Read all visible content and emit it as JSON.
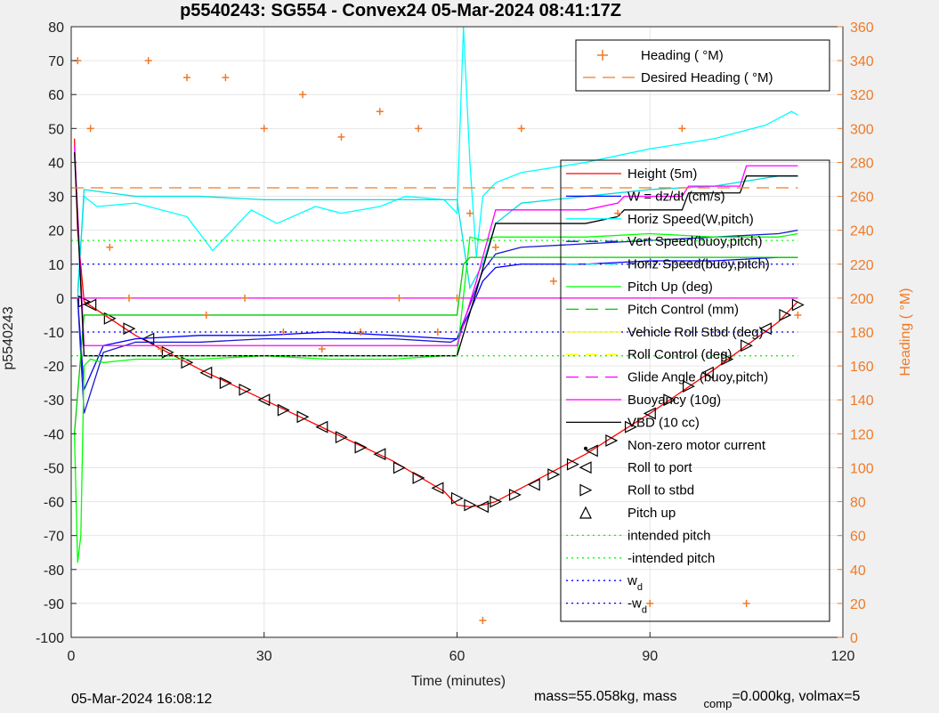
{
  "chart_data": {
    "type": "line",
    "title": "p5540243: SG554 - Convex24 05-Mar-2024 08:41:17Z",
    "xlabel": "Time (minutes)",
    "ylabel": "p5540243",
    "y2label": "Heading (  °M)",
    "xlim": [
      0,
      120
    ],
    "ylim": [
      -100,
      80
    ],
    "y2lim": [
      0,
      360
    ],
    "xticks": [
      0,
      30,
      60,
      90,
      120
    ],
    "yticks": [
      -100,
      -90,
      -80,
      -70,
      -60,
      -50,
      -40,
      -30,
      -20,
      -10,
      0,
      10,
      20,
      30,
      40,
      50,
      60,
      70,
      80
    ],
    "y2ticks": [
      0,
      20,
      40,
      60,
      80,
      100,
      120,
      140,
      160,
      180,
      200,
      220,
      240,
      260,
      280,
      300,
      320,
      340,
      360
    ],
    "grid": true,
    "legend_top": [
      {
        "label": "Heading (  °M)",
        "color": "#f07a28",
        "style": "plus"
      },
      {
        "label": "Desired Heading (  °M)",
        "color": "#f07a28",
        "style": "dash"
      }
    ],
    "legend_main": [
      {
        "label": "Height (5m)",
        "color": "#ff0000",
        "style": "solid"
      },
      {
        "label": "W = dz/dt (cm/s)",
        "color": "#0000ff",
        "style": "solid"
      },
      {
        "label": "Horiz Speed(W,pitch)",
        "color": "#00ffff",
        "style": "solid"
      },
      {
        "label": "Vert Speed(buoy,pitch)",
        "color": "#1a1ad0",
        "style": "dash"
      },
      {
        "label": "Horiz Speed(buoy,pitch)",
        "color": "#00e0e0",
        "style": "dash"
      },
      {
        "label": "Pitch Up (deg)",
        "color": "#00ff00",
        "style": "solid"
      },
      {
        "label": "Pitch Control (mm)",
        "color": "#00cc00",
        "style": "dash"
      },
      {
        "label": "Vehicle Roll Stbd (deg)",
        "color": "#ffff00",
        "style": "solid"
      },
      {
        "label": "Roll Control (deg)",
        "color": "#ffff00",
        "style": "dash"
      },
      {
        "label": "Glide Angle (buoy,pitch)",
        "color": "#ff00ff",
        "style": "dash"
      },
      {
        "label": "Buoyancy (10g)",
        "color": "#ff00ff",
        "style": "solid"
      },
      {
        "label": "VBD (10 cc)",
        "color": "#000000",
        "style": "solid"
      },
      {
        "label": "Non-zero motor current",
        "color": "#000000",
        "style": "dot-marker"
      },
      {
        "label": "Roll to port",
        "color": "#000000",
        "style": "tri-left"
      },
      {
        "label": "Roll to stbd",
        "color": "#000000",
        "style": "tri-right"
      },
      {
        "label": "Pitch up",
        "color": "#000000",
        "style": "tri-up"
      },
      {
        "label": "intended pitch",
        "color": "#00ff00",
        "style": "dotted"
      },
      {
        "label": "-intended pitch",
        "color": "#00ff00",
        "style": "dotted"
      },
      {
        "label": "w",
        "sub": "d",
        "color": "#0000ff",
        "style": "dotted"
      },
      {
        "label": "-w",
        "sub": "d",
        "color": "#0000ff",
        "style": "dotted"
      }
    ],
    "series": [
      {
        "name": "Height (5m)",
        "color": "#ff0000",
        "axis": "left",
        "x": [
          0.5,
          1,
          2,
          10,
          20,
          30,
          40,
          50,
          58,
          60,
          62,
          64,
          66,
          70,
          80,
          90,
          100,
          110,
          113
        ],
        "values": [
          47,
          20,
          -1,
          -11,
          -21,
          -30,
          -39,
          -48,
          -57,
          -61,
          -61.5,
          -61,
          -60,
          -56,
          -46,
          -34,
          -21,
          -7,
          -1
        ]
      },
      {
        "name": "Depth markers",
        "color": "#000000",
        "axis": "left",
        "x": [
          2,
          3,
          6,
          9,
          12,
          15,
          18,
          21,
          24,
          27,
          30,
          33,
          36,
          39,
          42,
          45,
          48,
          51,
          54,
          57,
          60,
          62,
          64,
          66,
          69,
          72,
          75,
          78,
          81,
          84,
          87,
          90,
          93,
          96,
          99,
          102,
          105,
          108,
          111,
          113
        ],
        "values": [
          -1,
          -2,
          -6,
          -9,
          -12,
          -16,
          -19,
          -22,
          -25,
          -27,
          -30,
          -33,
          -35,
          -38,
          -41,
          -44,
          -46,
          -50,
          -53,
          -56,
          -59,
          -61,
          -61.5,
          -60,
          -58,
          -55,
          -52,
          -49,
          -45,
          -42,
          -38,
          -34,
          -30,
          -26,
          -22,
          -18,
          -14,
          -9,
          -5,
          -2
        ]
      },
      {
        "name": "W = dz/dt (cm/s)",
        "color": "#0000ff",
        "axis": "left",
        "x": [
          1,
          2,
          5,
          10,
          20,
          30,
          40,
          50,
          59,
          60,
          62,
          64,
          66,
          70,
          80,
          90,
          100,
          110,
          113
        ],
        "values": [
          0,
          -27,
          -14,
          -12,
          -11,
          -11,
          -10,
          -11,
          -12,
          -12,
          -4,
          5,
          9,
          10,
          10,
          11,
          11,
          12,
          12
        ]
      },
      {
        "name": "Vert Speed(buoy,pitch)",
        "color": "#1a1ad0",
        "axis": "left",
        "x": [
          1,
          2,
          5,
          10,
          20,
          30,
          40,
          50,
          59,
          60,
          62,
          64,
          66,
          70,
          80,
          90,
          100,
          110,
          113
        ],
        "values": [
          0,
          -34,
          -16,
          -13,
          -13,
          -12,
          -12,
          -12,
          -13,
          -12,
          -2,
          8,
          13,
          15,
          16,
          17,
          18,
          19,
          20
        ]
      },
      {
        "name": "Horiz Speed(W,pitch)",
        "color": "#00ffff",
        "axis": "left",
        "x": [
          1,
          2,
          4,
          10,
          18,
          22,
          28,
          32,
          38,
          42,
          48,
          52,
          58,
          60,
          61,
          62,
          63,
          64,
          66,
          70,
          80,
          90,
          100,
          108,
          112,
          113
        ],
        "values": [
          2,
          30,
          27,
          28,
          24,
          14,
          26,
          22,
          27,
          25,
          27,
          30,
          29,
          25,
          80,
          40,
          12,
          30,
          34,
          37,
          40,
          44,
          47,
          51,
          55,
          54
        ]
      },
      {
        "name": "Horiz Speed(buoy,pitch)",
        "color": "#00e0e0",
        "axis": "left",
        "x": [
          1,
          2,
          10,
          20,
          30,
          40,
          50,
          58,
          60,
          62,
          64,
          66,
          70,
          80,
          90,
          100,
          110,
          113
        ],
        "values": [
          0,
          32,
          30,
          30,
          29,
          29,
          29,
          29,
          29,
          3,
          10,
          22,
          28,
          30,
          32,
          33,
          36,
          36
        ]
      },
      {
        "name": "Pitch Up (deg)",
        "color": "#00ff00",
        "axis": "left",
        "x": [
          0.5,
          1,
          1.5,
          2,
          3,
          5,
          10,
          20,
          30,
          40,
          50,
          58,
          60,
          62,
          64,
          66,
          70,
          80,
          90,
          100,
          110,
          113
        ],
        "values": [
          -40,
          -78,
          -70,
          -20,
          -18,
          -19,
          -18,
          -18,
          -17,
          -18,
          -18,
          -17,
          -17,
          18,
          17,
          18,
          18,
          18,
          19,
          18,
          18,
          19
        ]
      },
      {
        "name": "Pitch Control (mm)",
        "color": "#00cc00",
        "axis": "left",
        "x": [
          0.5,
          2,
          3,
          10,
          20,
          30,
          40,
          50,
          60,
          61,
          62,
          70,
          80,
          90,
          100,
          110,
          113
        ],
        "values": [
          -40,
          -5,
          -5,
          -5,
          -5,
          -5,
          -5,
          -5,
          -5,
          10,
          12,
          12,
          12,
          12,
          12,
          12,
          12
        ]
      },
      {
        "name": "Vehicle Roll Stbd (deg)",
        "color": "#ffff00",
        "axis": "left",
        "x": [
          0,
          10,
          20,
          30,
          40,
          50,
          60,
          70,
          80,
          90,
          100,
          110,
          113
        ],
        "values": [
          0,
          0,
          0,
          0,
          0,
          0,
          0,
          0,
          0,
          0,
          0,
          0,
          0
        ]
      },
      {
        "name": "Glide Angle (buoy,pitch)",
        "color": "#ff00ff",
        "axis": "left",
        "x": [
          0,
          10,
          20,
          30,
          40,
          50,
          60,
          70,
          80,
          90,
          100,
          110,
          113
        ],
        "values": [
          0,
          0,
          0,
          0,
          0,
          0,
          0,
          0,
          0,
          0,
          0,
          0,
          0
        ]
      },
      {
        "name": "Buoyancy (10g)",
        "color": "#ff00ff",
        "axis": "left",
        "x": [
          0.5,
          2,
          10,
          20,
          30,
          40,
          50,
          59,
          60,
          63,
          66,
          70,
          80,
          85,
          86,
          95,
          96,
          104,
          105,
          113
        ],
        "values": [
          45,
          -14,
          -14,
          -14,
          -14,
          -14,
          -14,
          -14,
          -14,
          5,
          26,
          26,
          26,
          28,
          30,
          30,
          33,
          33,
          39,
          39
        ]
      },
      {
        "name": "VBD (10 cc)",
        "color": "#000000",
        "axis": "left",
        "x": [
          0.5,
          2,
          10,
          20,
          30,
          40,
          50,
          59,
          60,
          63,
          66,
          70,
          80,
          85,
          86,
          95,
          96,
          104,
          105,
          113
        ],
        "values": [
          43,
          -17,
          -17,
          -17,
          -17,
          -17,
          -17,
          -17,
          -17,
          2,
          22,
          22,
          22,
          24,
          26,
          26,
          31,
          31,
          36,
          36
        ]
      },
      {
        "name": "Heading (  °M)",
        "color": "#f07a28",
        "axis": "right",
        "style": "plus",
        "x": [
          1,
          3,
          6,
          9,
          12,
          14,
          18,
          21,
          24,
          27,
          30,
          33,
          36,
          39,
          42,
          45,
          48,
          51,
          54,
          57,
          60,
          62,
          64,
          66,
          70,
          75,
          80,
          85,
          90,
          95,
          100,
          105,
          110,
          113
        ],
        "values": [
          340,
          300,
          230,
          200,
          340,
          170,
          330,
          190,
          330,
          200,
          300,
          180,
          320,
          170,
          295,
          180,
          310,
          200,
          300,
          180,
          200,
          250,
          10,
          230,
          300,
          210,
          330,
          250,
          20,
          300,
          340,
          20,
          350,
          190
        ]
      },
      {
        "name": "Desired Heading (  °M)",
        "color": "#f07a28",
        "axis": "right",
        "style": "dash",
        "x": [
          0,
          113
        ],
        "values": [
          265,
          265
        ]
      },
      {
        "name": "intended pitch",
        "color": "#00ff00",
        "axis": "left",
        "style": "dotted",
        "x": [
          0,
          113
        ],
        "values": [
          17,
          17
        ]
      },
      {
        "name": "-intended pitch",
        "color": "#00ff00",
        "axis": "left",
        "style": "dotted",
        "x": [
          0,
          113
        ],
        "values": [
          -17,
          -17
        ]
      },
      {
        "name": "w_d",
        "color": "#0000ff",
        "axis": "left",
        "style": "dotted",
        "x": [
          0,
          113
        ],
        "values": [
          10,
          10
        ]
      },
      {
        "name": "-w_d",
        "color": "#0000ff",
        "axis": "left",
        "style": "dotted",
        "x": [
          0,
          113
        ],
        "values": [
          -10,
          -10
        ]
      }
    ]
  },
  "footer": {
    "timestamp": "05-Mar-2024 16:08:12",
    "mass_text_1": "mass=55.058kg, mass",
    "mass_sub": "comp",
    "mass_text_2": "=0.000kg, volmax=5"
  }
}
